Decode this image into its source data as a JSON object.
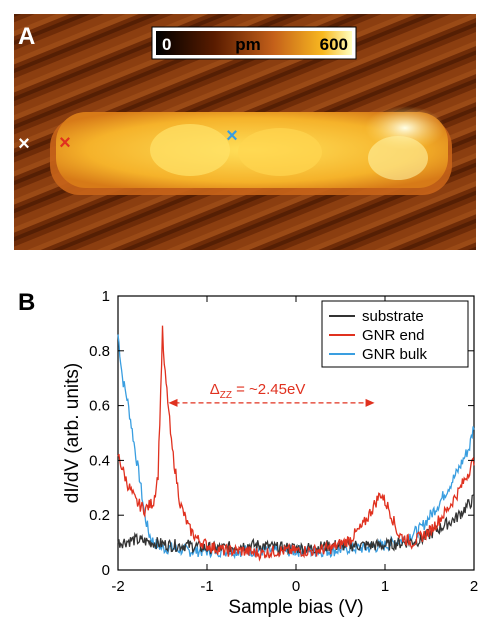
{
  "panel_a": {
    "label": "A",
    "colorbar": {
      "min_label": "0",
      "unit_label": "pm",
      "max_label": "600"
    },
    "markers": [
      {
        "name": "marker-substrate",
        "symbol": "×",
        "color": "#ffffff"
      },
      {
        "name": "marker-gnr-end",
        "symbol": "×",
        "color": "#e0311f"
      },
      {
        "name": "marker-gnr-bulk",
        "symbol": "×",
        "color": "#3a9ee0"
      }
    ]
  },
  "panel_b": {
    "label": "B"
  },
  "chart_data": {
    "type": "line",
    "xlabel": "Sample bias (V)",
    "ylabel": "dI/dV (arb. units)",
    "xlim": [
      -2,
      2
    ],
    "ylim": [
      0,
      1
    ],
    "xticks": [
      "-2",
      "-1",
      "0",
      "1",
      "2"
    ],
    "yticks": [
      "0",
      "0.2",
      "0.4",
      "0.6",
      "0.8",
      "1"
    ],
    "legend_position": "top-right",
    "annotation": {
      "symbol": "Δ",
      "subscript": "ZZ",
      "text": " = ~2.45eV",
      "x_from": -1.5,
      "x_to": 0.95,
      "y": 0.61,
      "color": "#e0311f"
    },
    "series": [
      {
        "name": "substrate",
        "color": "#333333",
        "x": [
          -2.0,
          -1.8,
          -1.6,
          -1.4,
          -1.2,
          -1.0,
          -0.8,
          -0.6,
          -0.4,
          -0.2,
          0.0,
          0.2,
          0.4,
          0.6,
          0.8,
          1.0,
          1.2,
          1.4,
          1.6,
          1.8,
          2.0
        ],
        "y": [
          0.1,
          0.11,
          0.1,
          0.09,
          0.09,
          0.08,
          0.08,
          0.09,
          0.09,
          0.08,
          0.08,
          0.08,
          0.09,
          0.09,
          0.09,
          0.09,
          0.1,
          0.11,
          0.15,
          0.19,
          0.26
        ]
      },
      {
        "name": "GNR end",
        "color": "#e0311f",
        "x": [
          -2.0,
          -1.9,
          -1.8,
          -1.7,
          -1.6,
          -1.55,
          -1.52,
          -1.5,
          -1.48,
          -1.44,
          -1.4,
          -1.3,
          -1.2,
          -1.1,
          -1.0,
          -0.8,
          -0.6,
          -0.4,
          -0.2,
          0.0,
          0.2,
          0.4,
          0.6,
          0.75,
          0.85,
          0.95,
          1.05,
          1.15,
          1.3,
          1.5,
          1.7,
          1.85,
          2.0
        ],
        "y": [
          0.42,
          0.32,
          0.25,
          0.22,
          0.25,
          0.35,
          0.65,
          0.87,
          0.74,
          0.62,
          0.46,
          0.24,
          0.15,
          0.11,
          0.09,
          0.07,
          0.07,
          0.06,
          0.07,
          0.07,
          0.07,
          0.08,
          0.11,
          0.16,
          0.22,
          0.28,
          0.22,
          0.13,
          0.1,
          0.14,
          0.22,
          0.3,
          0.4
        ]
      },
      {
        "name": "GNR bulk",
        "color": "#3a9ee0",
        "x": [
          -2.0,
          -1.95,
          -1.9,
          -1.85,
          -1.8,
          -1.75,
          -1.7,
          -1.65,
          -1.6,
          -1.5,
          -1.4,
          -1.2,
          -1.0,
          -0.8,
          -0.6,
          -0.4,
          -0.2,
          0.0,
          0.2,
          0.4,
          0.6,
          0.8,
          1.0,
          1.2,
          1.4,
          1.6,
          1.8,
          1.95,
          2.0
        ],
        "y": [
          0.86,
          0.7,
          0.63,
          0.53,
          0.42,
          0.32,
          0.2,
          0.13,
          0.1,
          0.08,
          0.08,
          0.07,
          0.07,
          0.07,
          0.07,
          0.07,
          0.07,
          0.07,
          0.07,
          0.07,
          0.08,
          0.08,
          0.09,
          0.11,
          0.15,
          0.24,
          0.35,
          0.45,
          0.53
        ]
      }
    ]
  }
}
